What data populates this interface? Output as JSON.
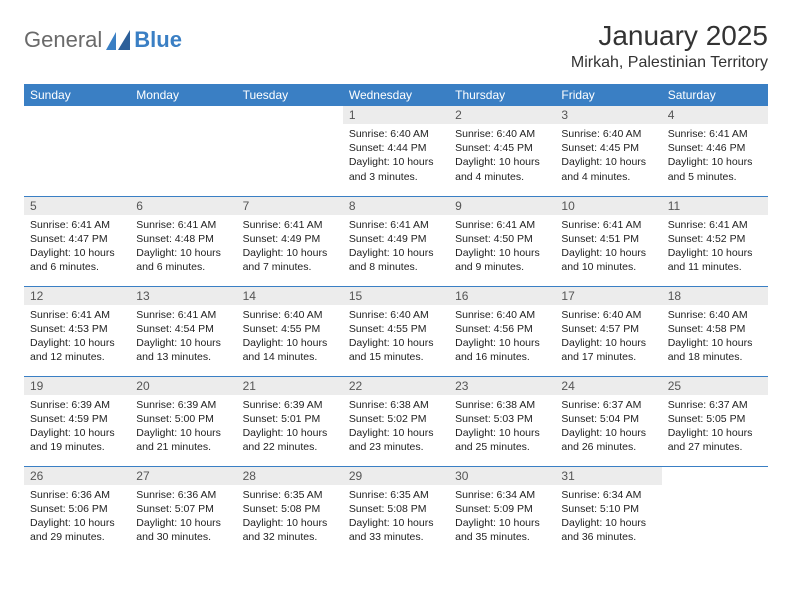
{
  "brand": {
    "general": "General",
    "blue": "Blue"
  },
  "title": "January 2025",
  "location": "Mirkah, Palestinian Territory",
  "colors": {
    "header_bg": "#3a7fc4",
    "header_fg": "#ffffff",
    "daynum_bg": "#ececec",
    "rule": "#3a7fc4",
    "logo_gray": "#6a6a6a",
    "logo_blue": "#3a7fc4",
    "bg": "#ffffff",
    "text": "#333333"
  },
  "weekdays": [
    "Sunday",
    "Monday",
    "Tuesday",
    "Wednesday",
    "Thursday",
    "Friday",
    "Saturday"
  ],
  "labels": {
    "sunrise": "Sunrise:",
    "sunset": "Sunset:",
    "daylight": "Daylight:"
  },
  "startOffset": 3,
  "days": [
    {
      "n": 1,
      "sunrise": "6:40 AM",
      "sunset": "4:44 PM",
      "daylight": "10 hours and 3 minutes."
    },
    {
      "n": 2,
      "sunrise": "6:40 AM",
      "sunset": "4:45 PM",
      "daylight": "10 hours and 4 minutes."
    },
    {
      "n": 3,
      "sunrise": "6:40 AM",
      "sunset": "4:45 PM",
      "daylight": "10 hours and 4 minutes."
    },
    {
      "n": 4,
      "sunrise": "6:41 AM",
      "sunset": "4:46 PM",
      "daylight": "10 hours and 5 minutes."
    },
    {
      "n": 5,
      "sunrise": "6:41 AM",
      "sunset": "4:47 PM",
      "daylight": "10 hours and 6 minutes."
    },
    {
      "n": 6,
      "sunrise": "6:41 AM",
      "sunset": "4:48 PM",
      "daylight": "10 hours and 6 minutes."
    },
    {
      "n": 7,
      "sunrise": "6:41 AM",
      "sunset": "4:49 PM",
      "daylight": "10 hours and 7 minutes."
    },
    {
      "n": 8,
      "sunrise": "6:41 AM",
      "sunset": "4:49 PM",
      "daylight": "10 hours and 8 minutes."
    },
    {
      "n": 9,
      "sunrise": "6:41 AM",
      "sunset": "4:50 PM",
      "daylight": "10 hours and 9 minutes."
    },
    {
      "n": 10,
      "sunrise": "6:41 AM",
      "sunset": "4:51 PM",
      "daylight": "10 hours and 10 minutes."
    },
    {
      "n": 11,
      "sunrise": "6:41 AM",
      "sunset": "4:52 PM",
      "daylight": "10 hours and 11 minutes."
    },
    {
      "n": 12,
      "sunrise": "6:41 AM",
      "sunset": "4:53 PM",
      "daylight": "10 hours and 12 minutes."
    },
    {
      "n": 13,
      "sunrise": "6:41 AM",
      "sunset": "4:54 PM",
      "daylight": "10 hours and 13 minutes."
    },
    {
      "n": 14,
      "sunrise": "6:40 AM",
      "sunset": "4:55 PM",
      "daylight": "10 hours and 14 minutes."
    },
    {
      "n": 15,
      "sunrise": "6:40 AM",
      "sunset": "4:55 PM",
      "daylight": "10 hours and 15 minutes."
    },
    {
      "n": 16,
      "sunrise": "6:40 AM",
      "sunset": "4:56 PM",
      "daylight": "10 hours and 16 minutes."
    },
    {
      "n": 17,
      "sunrise": "6:40 AM",
      "sunset": "4:57 PM",
      "daylight": "10 hours and 17 minutes."
    },
    {
      "n": 18,
      "sunrise": "6:40 AM",
      "sunset": "4:58 PM",
      "daylight": "10 hours and 18 minutes."
    },
    {
      "n": 19,
      "sunrise": "6:39 AM",
      "sunset": "4:59 PM",
      "daylight": "10 hours and 19 minutes."
    },
    {
      "n": 20,
      "sunrise": "6:39 AM",
      "sunset": "5:00 PM",
      "daylight": "10 hours and 21 minutes."
    },
    {
      "n": 21,
      "sunrise": "6:39 AM",
      "sunset": "5:01 PM",
      "daylight": "10 hours and 22 minutes."
    },
    {
      "n": 22,
      "sunrise": "6:38 AM",
      "sunset": "5:02 PM",
      "daylight": "10 hours and 23 minutes."
    },
    {
      "n": 23,
      "sunrise": "6:38 AM",
      "sunset": "5:03 PM",
      "daylight": "10 hours and 25 minutes."
    },
    {
      "n": 24,
      "sunrise": "6:37 AM",
      "sunset": "5:04 PM",
      "daylight": "10 hours and 26 minutes."
    },
    {
      "n": 25,
      "sunrise": "6:37 AM",
      "sunset": "5:05 PM",
      "daylight": "10 hours and 27 minutes."
    },
    {
      "n": 26,
      "sunrise": "6:36 AM",
      "sunset": "5:06 PM",
      "daylight": "10 hours and 29 minutes."
    },
    {
      "n": 27,
      "sunrise": "6:36 AM",
      "sunset": "5:07 PM",
      "daylight": "10 hours and 30 minutes."
    },
    {
      "n": 28,
      "sunrise": "6:35 AM",
      "sunset": "5:08 PM",
      "daylight": "10 hours and 32 minutes."
    },
    {
      "n": 29,
      "sunrise": "6:35 AM",
      "sunset": "5:08 PM",
      "daylight": "10 hours and 33 minutes."
    },
    {
      "n": 30,
      "sunrise": "6:34 AM",
      "sunset": "5:09 PM",
      "daylight": "10 hours and 35 minutes."
    },
    {
      "n": 31,
      "sunrise": "6:34 AM",
      "sunset": "5:10 PM",
      "daylight": "10 hours and 36 minutes."
    }
  ]
}
